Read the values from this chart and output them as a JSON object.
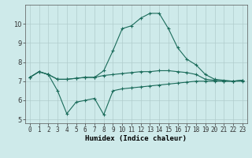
{
  "xlabel": "Humidex (Indice chaleur)",
  "x": [
    0,
    1,
    2,
    3,
    4,
    5,
    6,
    7,
    8,
    9,
    10,
    11,
    12,
    13,
    14,
    15,
    16,
    17,
    18,
    19,
    20,
    21,
    22,
    23
  ],
  "line1": [
    7.2,
    7.5,
    7.35,
    7.1,
    7.1,
    7.15,
    7.2,
    7.2,
    7.3,
    7.35,
    7.4,
    7.45,
    7.5,
    7.5,
    7.55,
    7.55,
    7.5,
    7.45,
    7.35,
    7.1,
    7.05,
    7.0,
    7.0,
    7.05
  ],
  "line2": [
    7.2,
    7.5,
    7.35,
    7.1,
    7.1,
    7.15,
    7.2,
    7.2,
    7.55,
    8.6,
    9.75,
    9.9,
    10.3,
    10.55,
    10.55,
    9.75,
    8.75,
    8.15,
    7.85,
    7.35,
    7.1,
    7.05,
    7.0,
    7.05
  ],
  "line3": [
    7.2,
    7.5,
    7.35,
    6.5,
    5.3,
    5.9,
    6.0,
    6.1,
    5.25,
    6.5,
    6.6,
    6.65,
    6.7,
    6.75,
    6.8,
    6.85,
    6.9,
    6.95,
    7.0,
    7.0,
    7.0,
    7.0,
    7.0,
    7.0
  ],
  "line_color": "#1a6b5a",
  "bg_color": "#ceeaea",
  "grid_color": "#b0cccc",
  "ylim": [
    4.8,
    11.0
  ],
  "xlim": [
    -0.5,
    23.5
  ],
  "yticks": [
    5,
    6,
    7,
    8,
    9,
    10
  ],
  "xticks": [
    0,
    1,
    2,
    3,
    4,
    5,
    6,
    7,
    8,
    9,
    10,
    11,
    12,
    13,
    14,
    15,
    16,
    17,
    18,
    19,
    20,
    21,
    22,
    23
  ],
  "tick_fontsize": 5.5,
  "xlabel_fontsize": 6.5
}
